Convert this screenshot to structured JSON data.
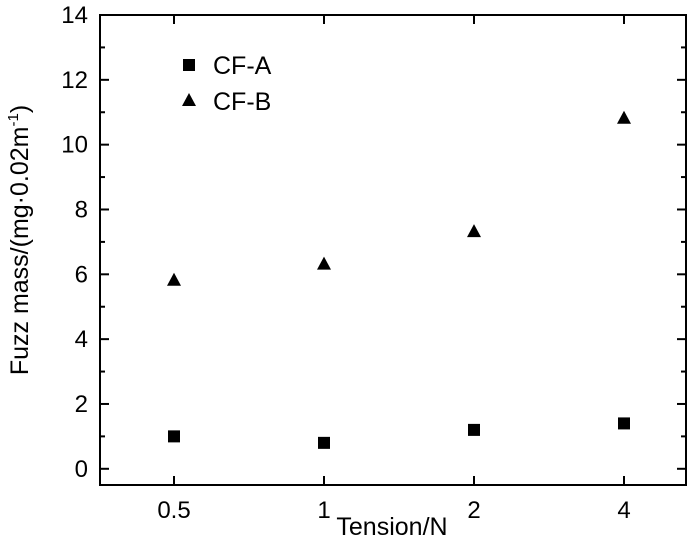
{
  "chart_data": {
    "type": "scatter",
    "categories": [
      "0.5",
      "1",
      "2",
      "4"
    ],
    "xlabel": "Tension/N",
    "ylabel_main": "Fuzz mass/(mg·0.02m",
    "ylabel_sup": "-1",
    "ylabel_close": ")",
    "ylim": [
      -0.5,
      14
    ],
    "yticks": [
      "0",
      "2",
      "4",
      "6",
      "8",
      "10",
      "12",
      "14"
    ],
    "grid": false,
    "legend_position": "top-left",
    "series": [
      {
        "name": "CF-A",
        "marker": "square",
        "values": [
          1.0,
          0.8,
          1.2,
          1.4
        ]
      },
      {
        "name": "CF-B",
        "marker": "triangle",
        "values": [
          5.8,
          6.3,
          7.3,
          10.8
        ]
      }
    ]
  }
}
